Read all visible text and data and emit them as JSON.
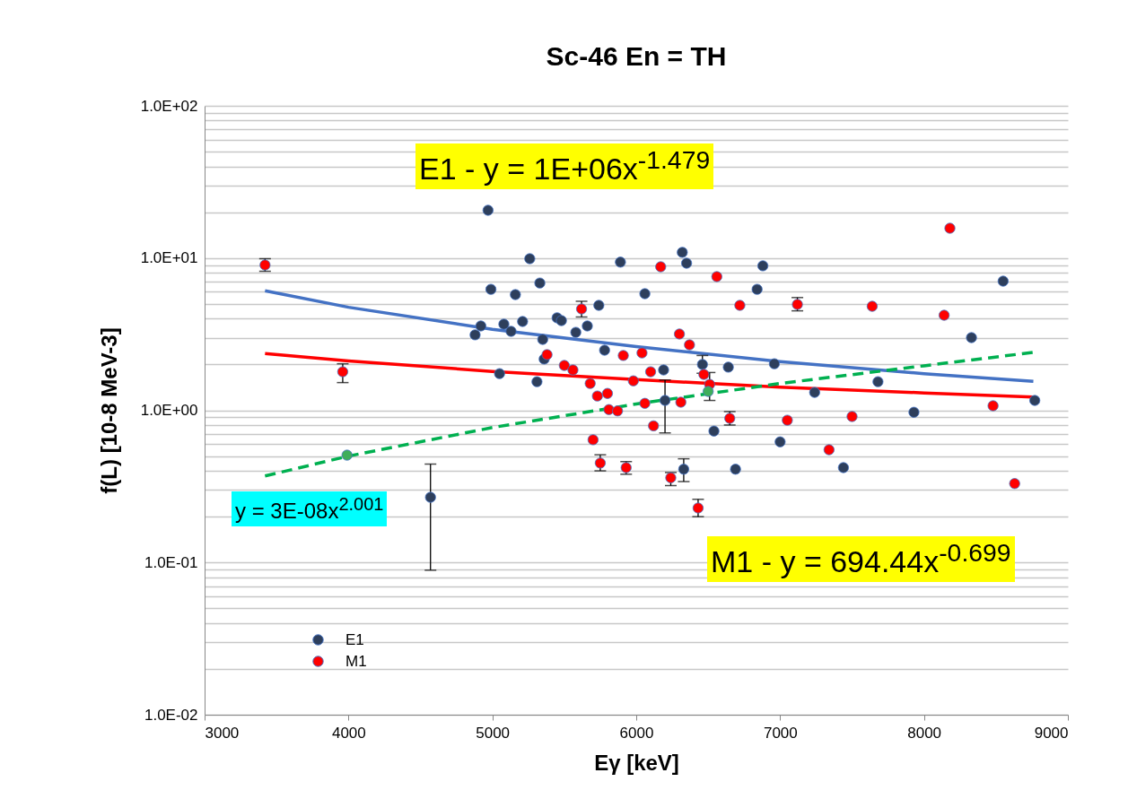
{
  "chart_data": {
    "type": "scatter",
    "title": "Sc-46 En = TH",
    "xlabel": "Eγ [keV]",
    "ylabel": "f(L) [10-8 MeV-3]",
    "annotations": [
      "E1 - y = 1E+06x$^{-1.479}$",
      "y = 3E-08x$^{2.001}$",
      "M1 - y = 694.44x$^{-0.699}$"
    ],
    "log": "y",
    "grid": "y",
    "legend": "bottom left",
    "xlim": [
      3000,
      9000
    ],
    "xticks": [
      3000,
      4000,
      5000,
      6000,
      7000,
      8000,
      9000
    ],
    "ylim": [
      0.01,
      100
    ],
    "yticks": [
      {
        "value": 0.01,
        "label": "1.0E-02"
      },
      {
        "value": 0.02,
        "label": null
      },
      {
        "value": 0.03,
        "label": null
      },
      {
        "value": 0.04,
        "label": null
      },
      {
        "value": 0.05,
        "label": null
      },
      {
        "value": 0.06,
        "label": null
      },
      {
        "value": 0.07,
        "label": null
      },
      {
        "value": 0.08,
        "label": null
      },
      {
        "value": 0.09,
        "label": null
      },
      {
        "value": 0.1,
        "label": "1.0E-01"
      },
      {
        "value": 0.2,
        "label": null
      },
      {
        "value": 0.3,
        "label": null
      },
      {
        "value": 0.4,
        "label": null
      },
      {
        "value": 0.5,
        "label": null
      },
      {
        "value": 0.6,
        "label": null
      },
      {
        "value": 0.7,
        "label": null
      },
      {
        "value": 0.8,
        "label": null
      },
      {
        "value": 0.9,
        "label": null
      },
      {
        "value": 1,
        "label": "1.0E+00"
      },
      {
        "value": 2,
        "label": null
      },
      {
        "value": 3,
        "label": null
      },
      {
        "value": 4,
        "label": null
      },
      {
        "value": 5,
        "label": null
      },
      {
        "value": 6,
        "label": null
      },
      {
        "value": 7,
        "label": null
      },
      {
        "value": 8,
        "label": null
      },
      {
        "value": 9,
        "label": null
      },
      {
        "value": 10,
        "label": "1.0E+01"
      },
      {
        "value": 20,
        "label": null
      },
      {
        "value": 30,
        "label": null
      },
      {
        "value": 40,
        "label": null
      },
      {
        "value": 50,
        "label": null
      },
      {
        "value": 60,
        "label": null
      },
      {
        "value": 70,
        "label": null
      },
      {
        "value": 80,
        "label": null
      },
      {
        "value": 90,
        "label": null
      },
      {
        "value": 100,
        "label": "1.0E+02"
      }
    ],
    "series": [
      {
        "name": "E1",
        "marker": "circle",
        "color": "#2e3f5c",
        "x": [
          4970,
          5260,
          5330,
          4990,
          5160,
          5210,
          5450,
          5480,
          5080,
          4920,
          4880,
          5130,
          5350,
          5580,
          5360,
          5050,
          5310,
          4570,
          5890,
          6320,
          6350,
          6880,
          6060,
          6840,
          5740,
          5660,
          5780,
          6460,
          6640,
          6960,
          6190,
          7680,
          7240,
          7930,
          6200,
          6540,
          7000,
          6330,
          6690,
          7440,
          8550,
          8330,
          8770
        ],
        "values": [
          20.6,
          9.9,
          6.85,
          6.23,
          5.75,
          3.83,
          4.05,
          3.88,
          3.68,
          3.58,
          3.13,
          3.3,
          2.92,
          3.25,
          2.17,
          1.74,
          1.54,
          0.268,
          9.4,
          10.9,
          9.25,
          8.89,
          5.83,
          6.23,
          4.89,
          3.58,
          2.48,
          2.0,
          1.92,
          2.02,
          1.84,
          1.54,
          1.31,
          0.97,
          1.16,
          0.73,
          0.62,
          0.41,
          0.41,
          0.42,
          7.05,
          3.0,
          1.16
        ],
        "errors": [
          null,
          null,
          null,
          null,
          null,
          null,
          null,
          null,
          null,
          null,
          null,
          null,
          null,
          null,
          null,
          null,
          null,
          [
            0.089,
            0.443
          ],
          null,
          null,
          null,
          null,
          null,
          null,
          null,
          null,
          null,
          [
            1.75,
            2.29
          ],
          null,
          null,
          null,
          null,
          null,
          null,
          [
            0.71,
            1.58
          ],
          null,
          null,
          [
            0.34,
            0.48
          ],
          null,
          null,
          null,
          null,
          null
        ]
      },
      {
        "name": "M1",
        "marker": "circle",
        "color": "#ff0000",
        "x": [
          3420,
          5380,
          5500,
          5560,
          3960,
          6170,
          6560,
          5620,
          6720,
          7120,
          7640,
          6300,
          6370,
          5910,
          6040,
          6100,
          6470,
          5980,
          5680,
          6510,
          5730,
          5800,
          6060,
          6310,
          5810,
          5870,
          6650,
          7050,
          7500,
          6120,
          5700,
          7340,
          5750,
          5930,
          6240,
          6430,
          8180,
          8140,
          8480,
          8630
        ],
        "values": [
          9.0,
          2.32,
          1.97,
          1.84,
          1.79,
          8.76,
          7.55,
          4.63,
          4.89,
          4.96,
          4.82,
          3.17,
          2.69,
          2.29,
          2.38,
          1.79,
          1.72,
          1.56,
          1.5,
          1.48,
          1.24,
          1.29,
          1.11,
          1.13,
          1.01,
          0.99,
          0.885,
          0.86,
          0.91,
          0.79,
          0.64,
          0.55,
          0.45,
          0.42,
          0.36,
          0.228,
          15.7,
          4.21,
          1.07,
          0.33
        ],
        "errors": [
          [
            8.2,
            9.9
          ],
          null,
          null,
          null,
          [
            1.52,
            2.02
          ],
          null,
          null,
          [
            4.1,
            5.2
          ],
          null,
          [
            4.5,
            5.5
          ],
          null,
          null,
          null,
          null,
          null,
          null,
          null,
          null,
          null,
          [
            1.16,
            1.77
          ],
          null,
          null,
          null,
          null,
          null,
          null,
          [
            0.8,
            0.98
          ],
          null,
          null,
          null,
          null,
          null,
          [
            0.4,
            0.51
          ],
          [
            0.38,
            0.46
          ],
          [
            0.32,
            0.39
          ],
          [
            0.2,
            0.26
          ],
          null,
          null,
          null,
          null
        ]
      },
      {
        "marker": "circle",
        "color": "#3fae5a",
        "x": [
          3990,
          6500
        ],
        "values": [
          0.507,
          1.33
        ]
      },
      {
        "type": "line",
        "color": "#4472c4",
        "line_style": "solid",
        "x": [
          3420,
          4000,
          5000,
          6000,
          7000,
          8000,
          8760
        ],
        "values": [
          6.1,
          4.75,
          3.4,
          2.62,
          2.09,
          1.74,
          1.55
        ]
      },
      {
        "type": "line",
        "color": "#ff0000",
        "line_style": "solid",
        "x": [
          3420,
          4000,
          5000,
          6000,
          7000,
          8000,
          8760
        ],
        "values": [
          2.36,
          2.11,
          1.8,
          1.59,
          1.42,
          1.3,
          1.22
        ]
      },
      {
        "type": "line",
        "color": "#00b050",
        "line_style": "dashed",
        "x": [
          3420,
          4000,
          5000,
          6000,
          7000,
          8000,
          8760
        ],
        "values": [
          0.37,
          0.5,
          0.77,
          1.1,
          1.5,
          1.96,
          2.4
        ]
      }
    ]
  }
}
